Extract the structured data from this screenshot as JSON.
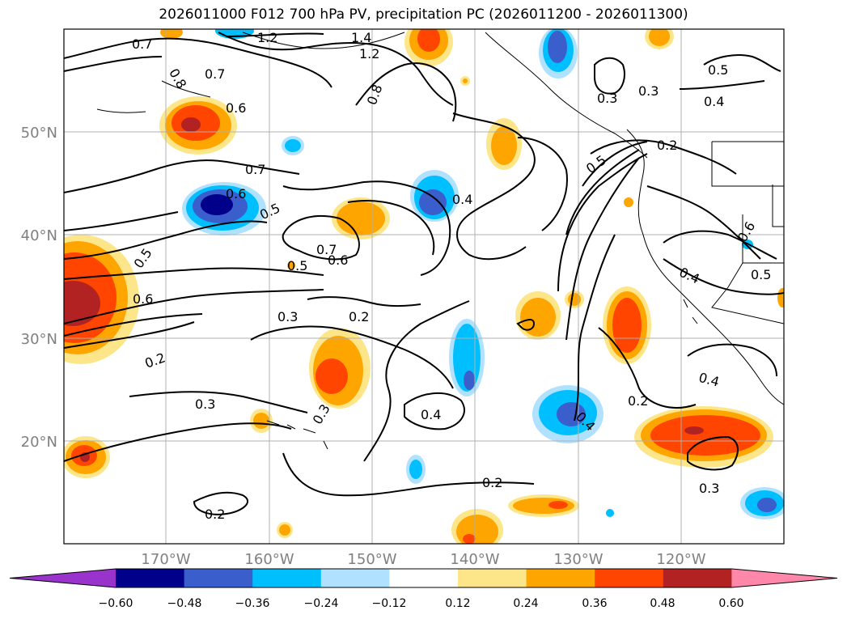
{
  "title": "2026011000 F012 700 hPa PV, precipitation PC (2026011200 - 2026011300)",
  "axes": {
    "lat_labels": [
      "50°N",
      "40°N",
      "30°N",
      "20°N"
    ],
    "lon_labels": [
      "170°W",
      "160°W",
      "150°W",
      "140°W",
      "130°W",
      "120°W"
    ],
    "label_color": "#808080",
    "grid": true
  },
  "contour_labels": [
    "0.7",
    "1.2",
    "1.4",
    "1.2",
    "0.8",
    "0.7",
    "0.8",
    "0.6",
    "0.5",
    "0.3",
    "0.3",
    "0.4",
    "0.5",
    "0.2",
    "0.7",
    "0.6",
    "0.5",
    "0.4",
    "0.5",
    "0.7",
    "0.6",
    "0.5",
    "0.6",
    "0.3",
    "0.2",
    "0.2",
    "0.3",
    "0.3",
    "0.4",
    "0.4",
    "0.2",
    "0.2",
    "0.3",
    "0.2",
    "0.4",
    "0.4",
    "0.5",
    "0.6"
  ],
  "colorbar": {
    "ticks": [
      "−0.60",
      "−0.48",
      "−0.36",
      "−0.24",
      "−0.12",
      "0.12",
      "0.24",
      "0.36",
      "0.48",
      "0.60"
    ],
    "colors": [
      "#9a33cc",
      "#00008b",
      "#3a5fcd",
      "#00bfff",
      "#b0e2ff",
      "#ffffff",
      "#fde68a",
      "#ffa500",
      "#ff4500",
      "#b22222",
      "#ff88aa"
    ]
  },
  "fill_colors": {
    "light_yellow": "#fde68a",
    "orange": "#ffa500",
    "orange_red": "#ff4500",
    "firebrick": "#b22222",
    "light_blue": "#b0e2ff",
    "deep_sky_blue": "#00bfff",
    "royal_blue": "#3a5fcd",
    "navy": "#00008b"
  }
}
